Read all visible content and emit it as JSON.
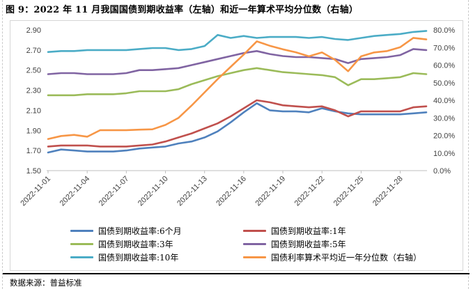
{
  "figure": {
    "title": "图 9：2022 年 11 月我国国债到期收益率（左轴）和近一年算术平均分位数（右轴）",
    "source": "数据来源：普益标准"
  },
  "chart_data": {
    "type": "line",
    "title": "2022 年 11 月我国国债到期收益率（左轴）和近一年算术平均分位数（右轴）",
    "grid": false,
    "legend_position": "bottom",
    "x": [
      "2022-11-01",
      "2022-11-02",
      "2022-11-03",
      "2022-11-04",
      "2022-11-05",
      "2022-11-06",
      "2022-11-07",
      "2022-11-08",
      "2022-11-09",
      "2022-11-10",
      "2022-11-11",
      "2022-11-12",
      "2022-11-13",
      "2022-11-14",
      "2022-11-15",
      "2022-11-16",
      "2022-11-17",
      "2022-11-18",
      "2022-11-19",
      "2022-11-20",
      "2022-11-21",
      "2022-11-22",
      "2022-11-23",
      "2022-11-24",
      "2022-11-25",
      "2022-11-26",
      "2022-11-27",
      "2022-11-28",
      "2022-11-29",
      "2022-11-30"
    ],
    "x_tick_every": 3,
    "x_tick_labels": [
      "2022-11-01",
      "2022-11-04",
      "2022-11-07",
      "2022-11-10",
      "2022-11-13",
      "2022-11-16",
      "2022-11-19",
      "2022-11-22",
      "2022-11-25",
      "2022-11-28"
    ],
    "left_axis": {
      "min": 1.5,
      "max": 2.9,
      "step": 0.2,
      "tick_labels": [
        "2.90",
        "2.70",
        "2.50",
        "2.30",
        "2.10",
        "1.90",
        "1.70",
        "1.50"
      ]
    },
    "right_axis": {
      "min": 0,
      "max": 80,
      "step": 10,
      "tick_labels": [
        "80.0%",
        "70.0%",
        "60.0%",
        "50.0%",
        "40.0%",
        "30.0%",
        "20.0%",
        "10.0%",
        "0.0%"
      ]
    },
    "series": [
      {
        "name": "国债到期收益率:6个月",
        "axis": "left",
        "color": "#4F81BD",
        "values": [
          1.68,
          1.71,
          1.7,
          1.69,
          1.69,
          1.69,
          1.7,
          1.72,
          1.73,
          1.74,
          1.77,
          1.79,
          1.83,
          1.89,
          1.98,
          2.08,
          2.17,
          2.1,
          2.09,
          2.09,
          2.08,
          2.12,
          2.09,
          2.07,
          2.06,
          2.06,
          2.06,
          2.06,
          2.07,
          2.08
        ]
      },
      {
        "name": "国债到期收益率:1年",
        "axis": "left",
        "color": "#C0504D",
        "values": [
          1.74,
          1.75,
          1.75,
          1.75,
          1.74,
          1.74,
          1.74,
          1.75,
          1.76,
          1.79,
          1.83,
          1.87,
          1.92,
          1.97,
          2.04,
          2.12,
          2.2,
          2.18,
          2.15,
          2.14,
          2.13,
          2.14,
          2.1,
          2.04,
          2.09,
          2.09,
          2.09,
          2.09,
          2.13,
          2.14
        ]
      },
      {
        "name": "国债到期收益率:3年",
        "axis": "left",
        "color": "#9BBB59",
        "values": [
          2.25,
          2.25,
          2.25,
          2.26,
          2.26,
          2.26,
          2.27,
          2.29,
          2.29,
          2.29,
          2.31,
          2.36,
          2.4,
          2.44,
          2.47,
          2.5,
          2.52,
          2.5,
          2.48,
          2.47,
          2.46,
          2.45,
          2.43,
          2.35,
          2.41,
          2.41,
          2.42,
          2.43,
          2.47,
          2.46
        ]
      },
      {
        "name": "国债到期收益率:5年",
        "axis": "left",
        "color": "#8064A2",
        "values": [
          2.46,
          2.47,
          2.47,
          2.46,
          2.46,
          2.46,
          2.47,
          2.5,
          2.5,
          2.51,
          2.52,
          2.55,
          2.58,
          2.61,
          2.64,
          2.67,
          2.69,
          2.66,
          2.64,
          2.63,
          2.63,
          2.62,
          2.61,
          2.57,
          2.61,
          2.62,
          2.63,
          2.65,
          2.71,
          2.7
        ]
      },
      {
        "name": "国债到期收益率:10年",
        "axis": "left",
        "color": "#4BACC6",
        "values": [
          2.68,
          2.69,
          2.69,
          2.7,
          2.7,
          2.7,
          2.7,
          2.71,
          2.72,
          2.72,
          2.7,
          2.71,
          2.74,
          2.85,
          2.82,
          2.84,
          2.82,
          2.83,
          2.83,
          2.83,
          2.82,
          2.83,
          2.81,
          2.8,
          2.82,
          2.84,
          2.85,
          2.86,
          2.88,
          2.89
        ]
      },
      {
        "name": "国债利率算术平均近一年分位数（右轴）",
        "axis": "right",
        "color": "#F79646",
        "values": [
          18.0,
          19.7,
          20.3,
          19.3,
          23.0,
          23.0,
          23.0,
          23.3,
          23.5,
          26.0,
          30.0,
          37.0,
          44.5,
          52.0,
          59.0,
          66.0,
          73.5,
          71.0,
          69.0,
          67.3,
          65.0,
          67.2,
          63.0,
          56.5,
          65.0,
          67.2,
          68.0,
          70.2,
          75.5,
          74.6
        ]
      }
    ]
  }
}
